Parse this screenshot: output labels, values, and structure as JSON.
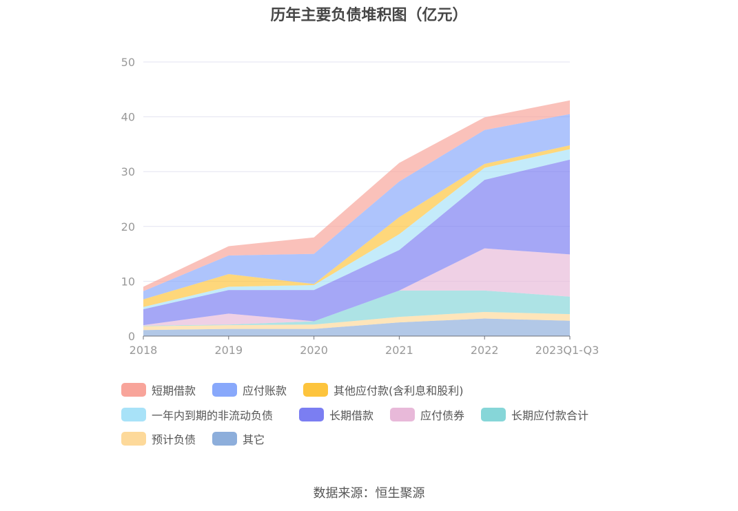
{
  "chart_data": {
    "type": "area",
    "stacked": true,
    "title": "历年主要负债堆积图（亿元）",
    "categories": [
      "2018",
      "2019",
      "2020",
      "2021",
      "2022",
      "2023Q1-Q3"
    ],
    "ylim": [
      0,
      50
    ],
    "yticks": [
      0,
      10,
      20,
      30,
      40,
      50
    ],
    "grid": true,
    "legend_position": "bottom",
    "series": [
      {
        "name": "其它",
        "color": "#8daedb",
        "values": [
          1.1,
          1.3,
          1.3,
          2.5,
          3.2,
          2.8
        ]
      },
      {
        "name": "预计负债",
        "color": "#fdd99a",
        "values": [
          0.7,
          0.7,
          0.8,
          1.0,
          1.2,
          1.2
        ]
      },
      {
        "name": "长期应付款合计",
        "color": "#86d6d8",
        "values": [
          0.1,
          0.1,
          0.6,
          4.8,
          3.9,
          3.2
        ]
      },
      {
        "name": "应付债券",
        "color": "#e8b9d9",
        "values": [
          0.1,
          2.0,
          0.0,
          0.0,
          7.7,
          7.7
        ]
      },
      {
        "name": "长期借款",
        "color": "#7b7ef2",
        "values": [
          2.9,
          4.3,
          5.7,
          7.4,
          12.5,
          17.3
        ]
      },
      {
        "name": "一年内到期的非流动负债",
        "color": "#a8e2f8",
        "values": [
          0.4,
          0.6,
          0.9,
          2.9,
          2.2,
          1.9
        ]
      },
      {
        "name": "其他应付款(含利息和股利)",
        "color": "#fdc43d",
        "values": [
          1.4,
          2.3,
          0.2,
          3.1,
          0.7,
          0.7
        ]
      },
      {
        "name": "应付账款",
        "color": "#88a8fb",
        "values": [
          1.5,
          3.4,
          5.5,
          6.5,
          6.2,
          5.7
        ]
      },
      {
        "name": "短期借款",
        "color": "#f8a49a",
        "values": [
          0.8,
          1.7,
          3.0,
          3.4,
          2.3,
          2.5
        ]
      }
    ],
    "legend_order": [
      "短期借款",
      "应付账款",
      "其他应付款(含利息和股利)",
      "一年内到期的非流动负债",
      "长期借款",
      "应付债券",
      "长期应付款合计",
      "预计负债",
      "其它"
    ]
  },
  "source": "数据来源：恒生聚源"
}
